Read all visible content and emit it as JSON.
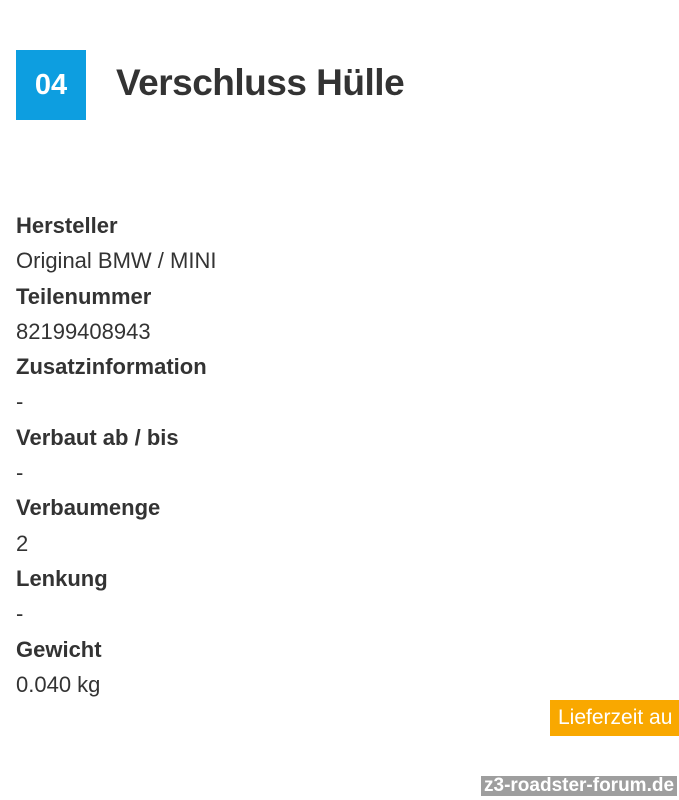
{
  "header": {
    "number": "04",
    "title": "Verschluss Hülle"
  },
  "specs": [
    {
      "label": "Hersteller",
      "value": "Original BMW / MINI"
    },
    {
      "label": "Teilenummer",
      "value": "82199408943"
    },
    {
      "label": "Zusatzinformation",
      "value": "-"
    },
    {
      "label": "Verbaut ab / bis",
      "value": "-"
    },
    {
      "label": "Verbaumenge",
      "value": "2"
    },
    {
      "label": "Lenkung",
      "value": "-"
    },
    {
      "label": "Gewicht",
      "value": "0.040 kg"
    }
  ],
  "badge": {
    "text": "Lieferzeit au",
    "color": "#f9a800"
  },
  "watermark": "z3-roadster-forum.de",
  "colors": {
    "accent": "#0d9ee0"
  }
}
